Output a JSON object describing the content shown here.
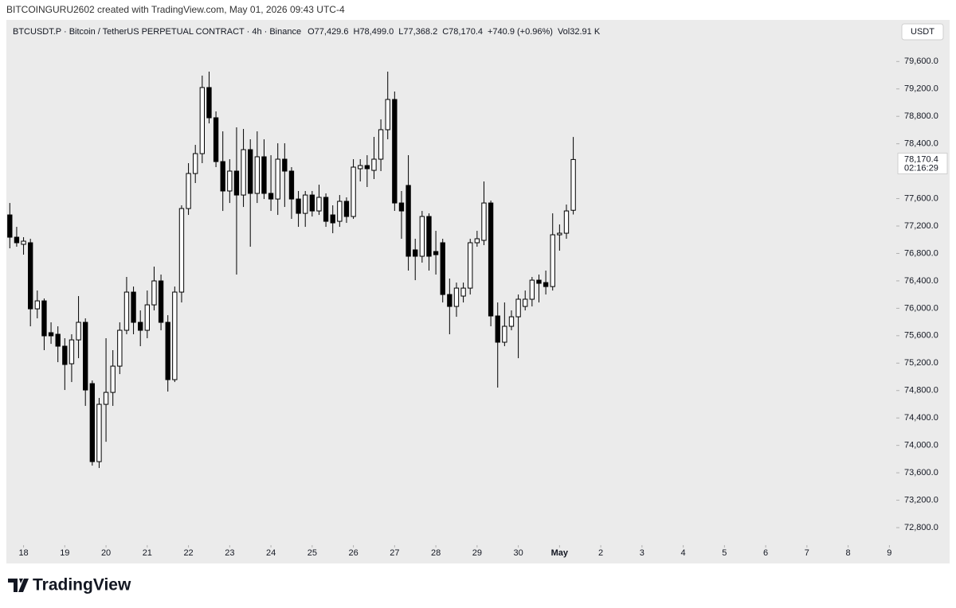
{
  "header": "BITCOINGURU2602 created with TradingView.com, May 01, 2026 09:43 UTC-4",
  "brand": "TradingView",
  "chart_data": {
    "type": "candlestick",
    "legend": {
      "symbol": "BTCUSDT.P · Bitcoin / TetherUS PERPETUAL CONTRACT · 4h · Binance",
      "fields": [
        {
          "key": "O",
          "value": "77,429.6"
        },
        {
          "key": "H",
          "value": "78,499.0"
        },
        {
          "key": "L",
          "value": "77,368.2"
        },
        {
          "key": "C",
          "value": "78,170.4"
        }
      ],
      "change": "+740.9 (+0.96%)",
      "volume_key": "Vol",
      "volume": "32.91 K"
    },
    "currency": "USDT",
    "open": [
      77362,
      77037,
      76933,
      76956,
      75992,
      76108,
      75644,
      75621,
      75447,
      75191,
      75539,
      75795,
      74901,
      73763,
      74599,
      74773,
      75156,
      75679,
      76236,
      75795,
      75679,
      76050,
      76399,
      75795,
      74959,
      76236,
      77455,
      77966,
      78256,
      79220,
      78779,
      78140,
      77711,
      78001,
      77652,
      78314,
      77676,
      78210,
      77676,
      77594,
      78175,
      78001,
      77594,
      77385,
      77652,
      77420,
      77618,
      77362,
      77269,
      77560,
      77339,
      78036,
      78082,
      78012,
      78175,
      78605,
      79046,
      77536,
      77792,
      76852,
      76759,
      77339,
      76828,
      76956,
      76201,
      76027,
      76178,
      76294,
      76956,
      76991,
      77536,
      75888,
      75505,
      75737,
      75876,
      76027,
      76132,
      76410,
      76375,
      76317,
      77072,
      77095,
      77429.6
    ],
    "high": [
      77536,
      77188,
      77037,
      77014,
      76259,
      76143,
      75795,
      75737,
      75563,
      75621,
      76178,
      75853,
      74947,
      74692,
      75563,
      75389,
      75795,
      76457,
      76317,
      75969,
      76259,
      76608,
      76492,
      75899,
      76317,
      77502,
      78117,
      78384,
      79394,
      79452,
      78872,
      78581,
      78175,
      78639,
      78616,
      78465,
      78581,
      78465,
      78233,
      78407,
      78407,
      78059,
      77711,
      77711,
      77711,
      77803,
      77676,
      77502,
      77652,
      77618,
      78175,
      78175,
      78233,
      78500,
      78756,
      79452,
      79162,
      77711,
      78233,
      77014,
      77420,
      77385,
      77130,
      77014,
      76434,
      76375,
      76375,
      77014,
      77130,
      77850,
      77571,
      76085,
      76085,
      75969,
      76201,
      76259,
      76457,
      76492,
      76550,
      77385,
      77223,
      77513,
      78499.0
    ],
    "low": [
      76875,
      76898,
      76782,
      75737,
      75853,
      75389,
      75481,
      75214,
      74808,
      74924,
      75272,
      74576,
      73705,
      73670,
      74053,
      74576,
      75040,
      75621,
      75621,
      75447,
      75563,
      75969,
      75679,
      74785,
      74924,
      76085,
      77362,
      77827,
      78117,
      78697,
      78059,
      77420,
      77536,
      76492,
      77478,
      76898,
      77536,
      77594,
      77420,
      77362,
      77478,
      77304,
      77188,
      77188,
      77339,
      77362,
      77188,
      77095,
      77188,
      77246,
      77304,
      77850,
      77769,
      77885,
      78001,
      78465,
      77420,
      77014,
      76550,
      76410,
      76666,
      76550,
      76492,
      76085,
      75621,
      75876,
      76085,
      76201,
      76898,
      76921,
      75737,
      74843,
      75447,
      75679,
      75272,
      75969,
      76027,
      76085,
      76201,
      76259,
      76840,
      77014,
      77368.2
    ],
    "close": [
      77037,
      76956,
      76979,
      75992,
      76108,
      75598,
      75598,
      75447,
      75180,
      75539,
      75795,
      74808,
      73763,
      74599,
      74773,
      75156,
      75679,
      76236,
      75795,
      75679,
      76050,
      76399,
      75795,
      74959,
      76236,
      77455,
      77966,
      78256,
      79220,
      78779,
      78140,
      77711,
      78001,
      77652,
      78314,
      77676,
      78210,
      77676,
      77594,
      78175,
      78001,
      77594,
      77385,
      77652,
      77420,
      77618,
      77269,
      77246,
      77560,
      77339,
      78059,
      78082,
      78036,
      78175,
      78605,
      79046,
      77536,
      77420,
      76759,
      76759,
      77339,
      76759,
      76782,
      76201,
      76027,
      76294,
      76294,
      76956,
      77014,
      77536,
      75888,
      75505,
      75737,
      75876,
      76132,
      76132,
      76410,
      76364,
      76317,
      77072,
      77095,
      77420,
      78170.4
    ],
    "up_color": "#ffffff",
    "down_color": "#000000",
    "wick_color": "#000000",
    "last_price": {
      "value": 78170.4,
      "label": "78,170.4"
    },
    "countdown": "02:16:29",
    "ylim": [
      72568,
      80172
    ],
    "yticks": [
      {
        "value": 72800,
        "label": "72,800.0"
      },
      {
        "value": 73200,
        "label": "73,200.0"
      },
      {
        "value": 73600,
        "label": "73,600.0"
      },
      {
        "value": 74000,
        "label": "74,000.0"
      },
      {
        "value": 74400,
        "label": "74,400.0"
      },
      {
        "value": 74800,
        "label": "74,800.0"
      },
      {
        "value": 75200,
        "label": "75,200.0"
      },
      {
        "value": 75600,
        "label": "75,600.0"
      },
      {
        "value": 76000,
        "label": "76,000.0"
      },
      {
        "value": 76400,
        "label": "76,400.0"
      },
      {
        "value": 76800,
        "label": "76,800.0"
      },
      {
        "value": 77200,
        "label": "77,200.0"
      },
      {
        "value": 77600,
        "label": "77,600.0"
      },
      {
        "value": 78400,
        "label": "78,400.0"
      },
      {
        "value": 78800,
        "label": "78,800.0"
      },
      {
        "value": 79200,
        "label": "79,200.0"
      },
      {
        "value": 79600,
        "label": "79,600.0"
      }
    ],
    "xlim": [
      -0.5,
      129
    ],
    "xticks": [
      {
        "value": 2,
        "label": "18"
      },
      {
        "value": 8,
        "label": "19"
      },
      {
        "value": 14,
        "label": "20"
      },
      {
        "value": 20,
        "label": "21"
      },
      {
        "value": 26,
        "label": "22"
      },
      {
        "value": 32,
        "label": "23"
      },
      {
        "value": 38,
        "label": "24"
      },
      {
        "value": 44,
        "label": "25"
      },
      {
        "value": 50,
        "label": "26"
      },
      {
        "value": 56,
        "label": "27"
      },
      {
        "value": 62,
        "label": "28"
      },
      {
        "value": 68,
        "label": "29"
      },
      {
        "value": 74,
        "label": "30"
      },
      {
        "value": 80,
        "label": "May"
      },
      {
        "value": 86,
        "label": "2"
      },
      {
        "value": 92,
        "label": "3"
      },
      {
        "value": 98,
        "label": "4"
      },
      {
        "value": 104,
        "label": "5"
      },
      {
        "value": 110,
        "label": "6"
      },
      {
        "value": 116,
        "label": "7"
      },
      {
        "value": 122,
        "label": "8"
      },
      {
        "value": 128,
        "label": "9"
      }
    ],
    "grid": false
  }
}
